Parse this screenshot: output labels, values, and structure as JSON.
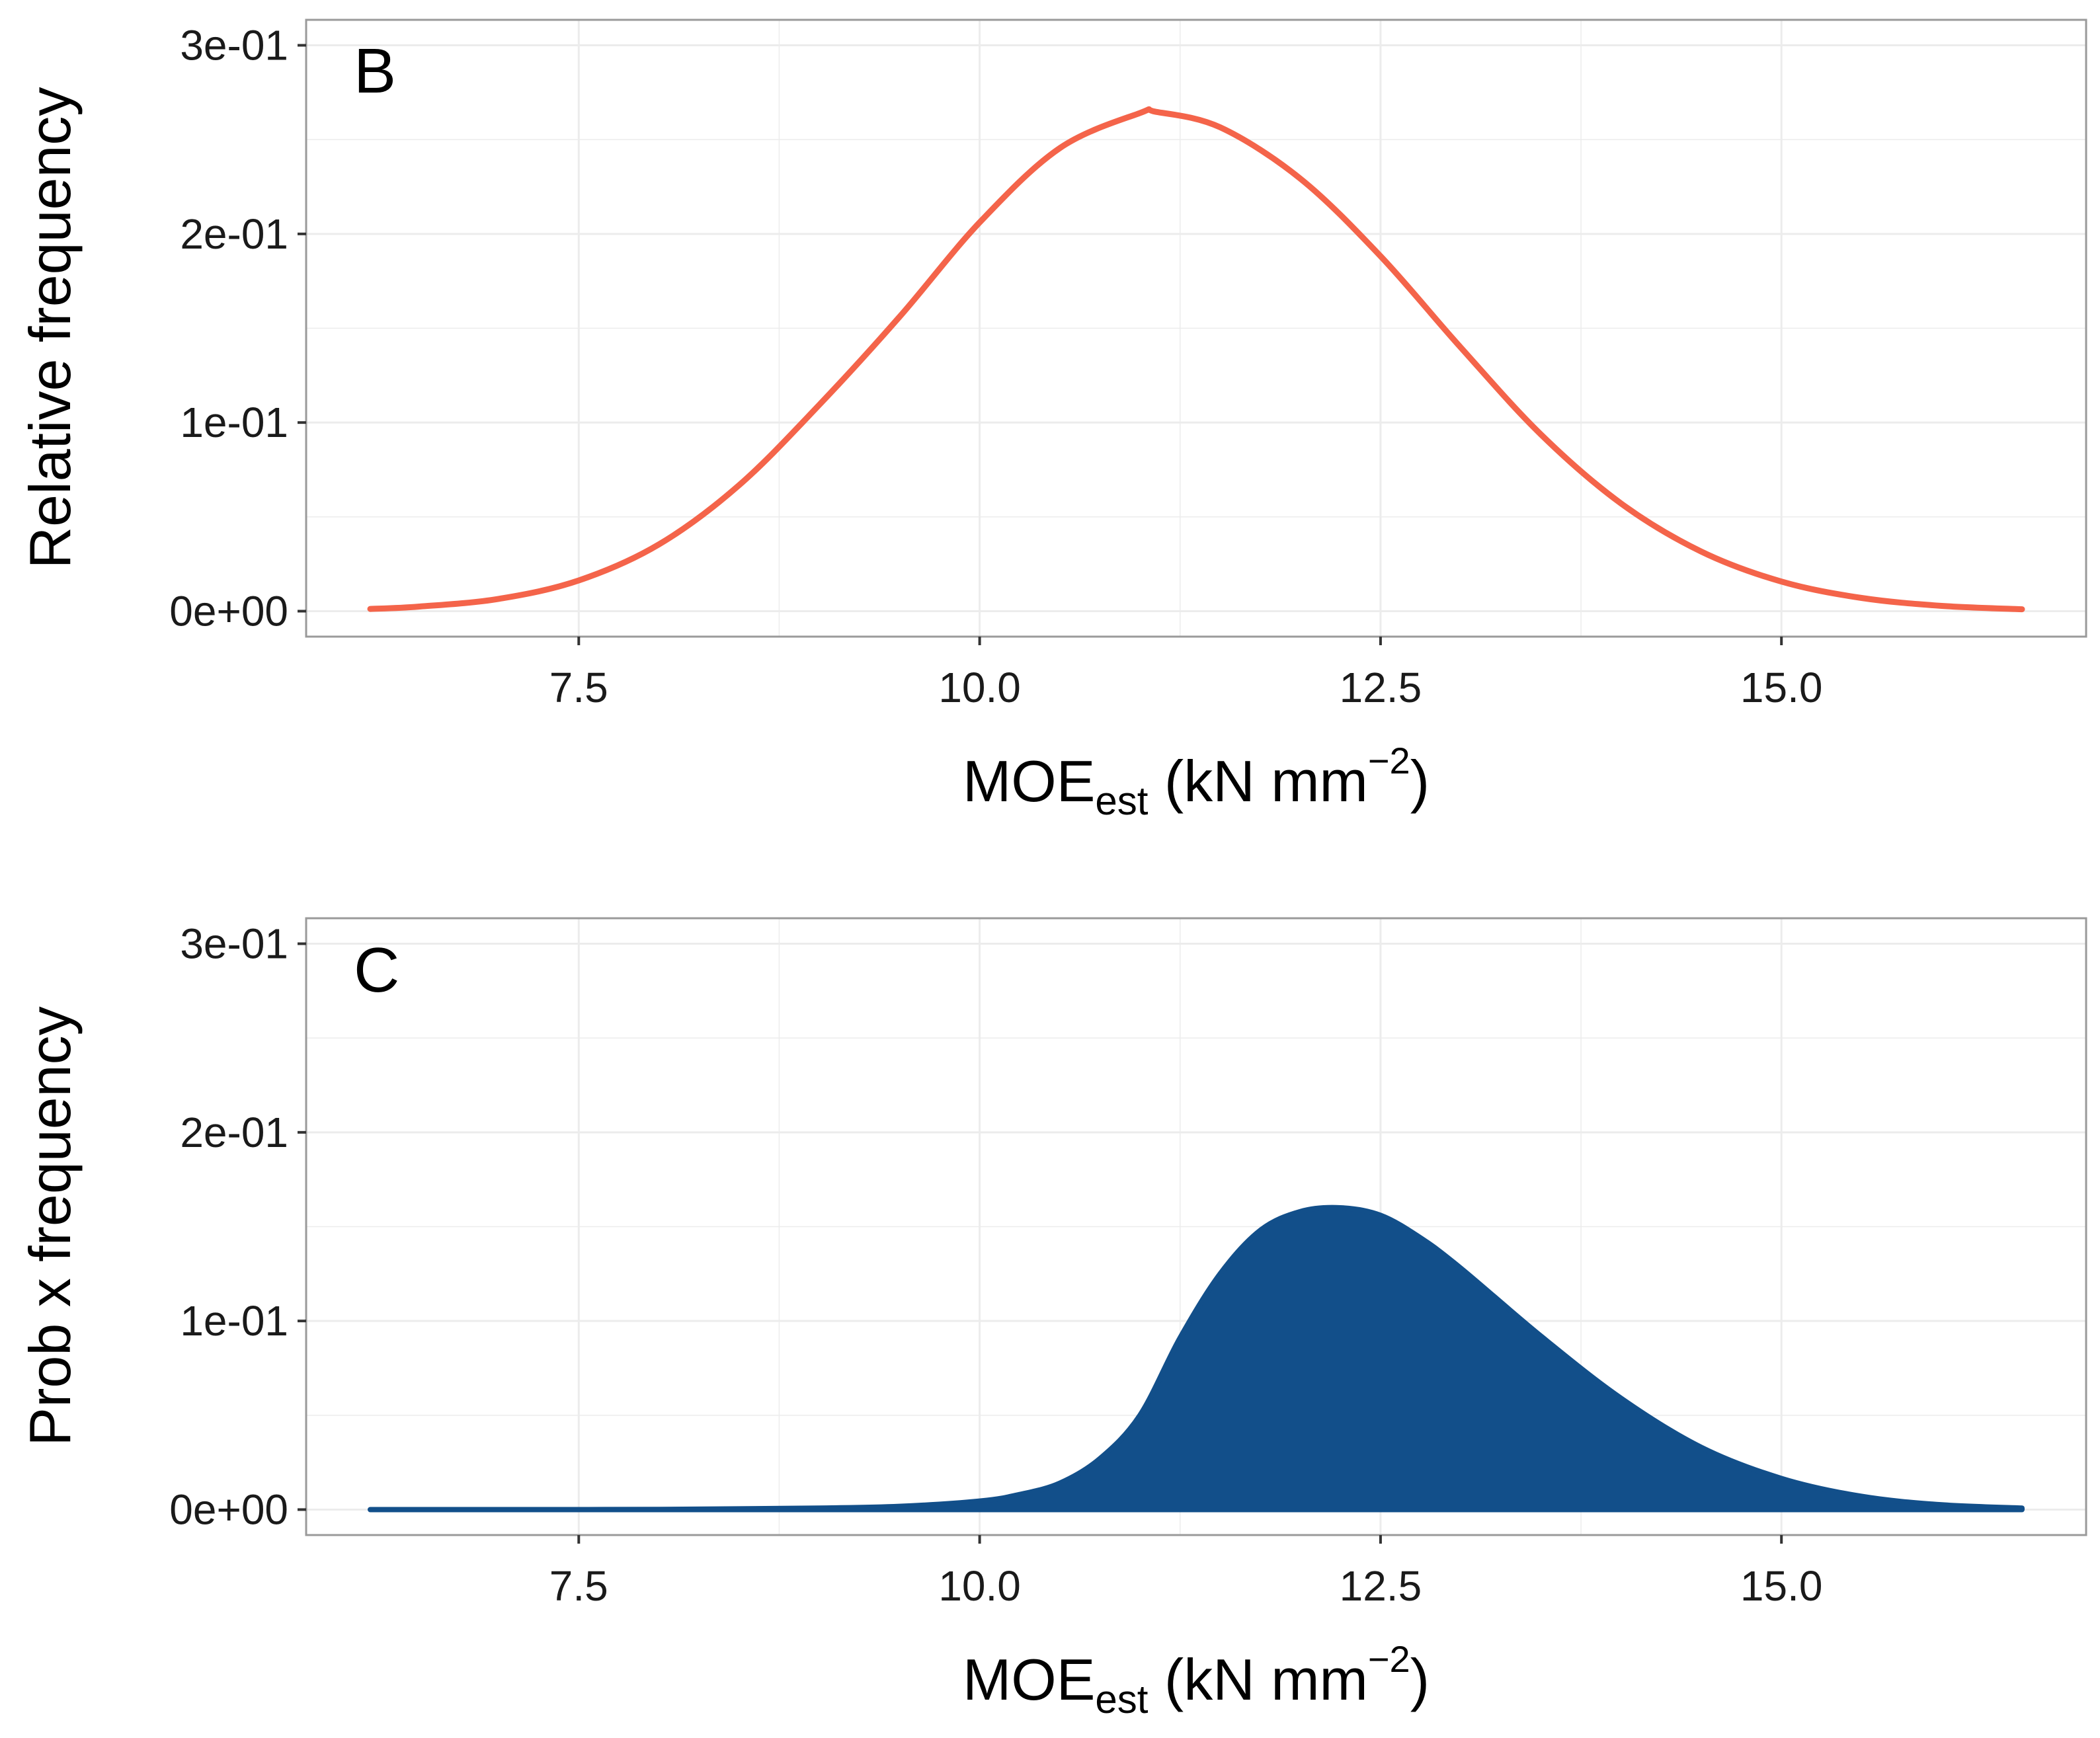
{
  "colors": {
    "series_b": "#f4644a",
    "series_c": "#124f8a",
    "panel_border": "#9a9a9a",
    "grid": "#ececec"
  },
  "chart_data": [
    {
      "type": "line",
      "panel_label": "B",
      "title": "",
      "xlabel": {
        "main": "MOE",
        "subscript": "est",
        "units_open": " (kN mm",
        "superscript": "−2",
        "units_close": ")"
      },
      "ylabel": "Relative frequency",
      "xlim": [
        5.8,
        16.9
      ],
      "ylim": [
        -0.0135,
        0.3135
      ],
      "x_ticks": [
        7.5,
        10.0,
        12.5,
        15.0
      ],
      "x_tick_labels": [
        "7.5",
        "10.0",
        "12.5",
        "15.0"
      ],
      "y_ticks": [
        0,
        0.1,
        0.2,
        0.3
      ],
      "y_tick_labels": [
        "0e+00",
        "1e-01",
        "2e-01",
        "3e-01"
      ],
      "grid": true,
      "series": [
        {
          "name": "Relative frequency",
          "x": [
            6.2,
            6.5,
            7.0,
            7.5,
            8.0,
            8.5,
            9.0,
            9.5,
            10.0,
            10.5,
            11.0,
            11.1,
            11.5,
            12.0,
            12.5,
            13.0,
            13.5,
            14.0,
            14.5,
            15.0,
            15.5,
            16.0,
            16.5
          ],
          "y": [
            0.0012,
            0.0024,
            0.0065,
            0.0163,
            0.0354,
            0.0668,
            0.1094,
            0.156,
            0.2061,
            0.2455,
            0.2641,
            0.2647,
            0.2565,
            0.2293,
            0.1882,
            0.1398,
            0.0937,
            0.0571,
            0.0316,
            0.0157,
            0.007,
            0.0028,
            0.001
          ]
        }
      ]
    },
    {
      "type": "area",
      "panel_label": "C",
      "title": "",
      "xlabel": {
        "main": "MOE",
        "subscript": "est",
        "units_open": " (kN mm",
        "superscript": "−2",
        "units_close": ")"
      },
      "ylabel": "Prob x frequency",
      "xlim": [
        5.8,
        16.9
      ],
      "ylim": [
        -0.0135,
        0.3135
      ],
      "x_ticks": [
        7.5,
        10.0,
        12.5,
        15.0
      ],
      "x_tick_labels": [
        "7.5",
        "10.0",
        "12.5",
        "15.0"
      ],
      "y_ticks": [
        0,
        0.1,
        0.2,
        0.3
      ],
      "y_tick_labels": [
        "0e+00",
        "1e-01",
        "2e-01",
        "3e-01"
      ],
      "grid": true,
      "series": [
        {
          "name": "Prob x frequency",
          "x": [
            6.2,
            7.0,
            8.0,
            9.0,
            9.5,
            10.0,
            10.25,
            10.5,
            10.75,
            11.0,
            11.25,
            11.5,
            11.75,
            12.0,
            12.25,
            12.5,
            12.75,
            13.0,
            13.5,
            14.0,
            14.5,
            15.0,
            15.5,
            16.0,
            16.5
          ],
          "y": [
            0,
            0,
            0.0001,
            0.0008,
            0.0017,
            0.0045,
            0.008,
            0.014,
            0.027,
            0.05,
            0.091,
            0.125,
            0.148,
            0.158,
            0.16,
            0.156,
            0.144,
            0.128,
            0.092,
            0.059,
            0.033,
            0.0165,
            0.007,
            0.0025,
            0.0008
          ]
        }
      ]
    }
  ]
}
